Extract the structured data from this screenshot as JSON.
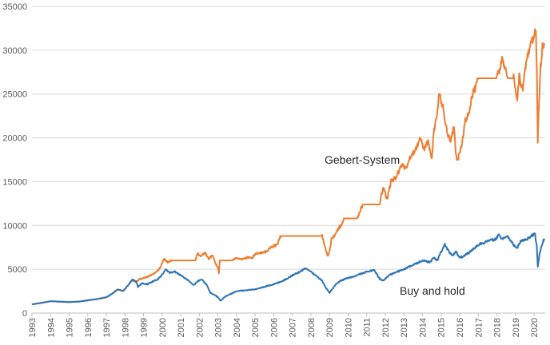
{
  "chart_data": {
    "type": "line",
    "title": "",
    "xlabel": "",
    "ylabel": "",
    "ylim": [
      0,
      35000
    ],
    "yticks": [
      0,
      5000,
      10000,
      15000,
      20000,
      25000,
      30000,
      35000
    ],
    "xlim": [
      1993,
      2020.6
    ],
    "xticks": [
      "1993",
      "1994",
      "1995",
      "1996",
      "1997",
      "1998",
      "1999",
      "2000",
      "2001",
      "2002",
      "2003",
      "2004",
      "2005",
      "2006",
      "2007",
      "2008",
      "2009",
      "2010",
      "2011",
      "2012",
      "2013",
      "2014",
      "2015",
      "2016",
      "2017",
      "2018",
      "2019",
      "2020"
    ],
    "grid": "horizontal",
    "legend": "none",
    "annotations": [
      {
        "text": "Gebert-System",
        "series": "orange"
      },
      {
        "text": "Buy and hold",
        "series": "blue"
      }
    ],
    "series": [
      {
        "color": "#ED7D31",
        "points": [
          [
            1993.0,
            1000
          ],
          [
            1993.5,
            1150
          ],
          [
            1994.0,
            1350
          ],
          [
            1994.5,
            1300
          ],
          [
            1995.0,
            1250
          ],
          [
            1995.5,
            1300
          ],
          [
            1996.0,
            1450
          ],
          [
            1996.5,
            1600
          ],
          [
            1997.0,
            1800
          ],
          [
            1997.3,
            2200
          ],
          [
            1997.6,
            2700
          ],
          [
            1997.9,
            2500
          ],
          [
            1998.1,
            3000
          ],
          [
            1998.4,
            3800
          ],
          [
            1998.6,
            3500
          ],
          [
            1998.8,
            3900
          ],
          [
            1999.0,
            4000
          ],
          [
            1999.4,
            4300
          ],
          [
            1999.7,
            4700
          ],
          [
            1999.9,
            5200
          ],
          [
            2000.1,
            6200
          ],
          [
            2000.3,
            5800
          ],
          [
            2000.5,
            6000
          ],
          [
            2001.0,
            6000
          ],
          [
            2001.5,
            6000
          ],
          [
            2001.8,
            6000
          ],
          [
            2001.9,
            6800
          ],
          [
            2002.1,
            6500
          ],
          [
            2002.3,
            6900
          ],
          [
            2002.5,
            6200
          ],
          [
            2002.7,
            6600
          ],
          [
            2002.9,
            5500
          ],
          [
            2003.0,
            5200
          ],
          [
            2003.05,
            4500
          ],
          [
            2003.1,
            6000
          ],
          [
            2003.5,
            6000
          ],
          [
            2003.8,
            6000
          ],
          [
            2004.0,
            6300
          ],
          [
            2004.3,
            6100
          ],
          [
            2004.6,
            6400
          ],
          [
            2004.8,
            6200
          ],
          [
            2005.0,
            6700
          ],
          [
            2005.3,
            6900
          ],
          [
            2005.6,
            7000
          ],
          [
            2005.9,
            7600
          ],
          [
            2006.2,
            7800
          ],
          [
            2006.3,
            8500
          ],
          [
            2006.4,
            8800
          ],
          [
            2007.0,
            8800
          ],
          [
            2007.5,
            8800
          ],
          [
            2008.0,
            8800
          ],
          [
            2008.6,
            8800
          ],
          [
            2008.7,
            8000
          ],
          [
            2008.8,
            7300
          ],
          [
            2008.9,
            6500
          ],
          [
            2009.0,
            7000
          ],
          [
            2009.1,
            8400
          ],
          [
            2009.3,
            8900
          ],
          [
            2009.5,
            9700
          ],
          [
            2009.7,
            10200
          ],
          [
            2009.8,
            10800
          ],
          [
            2010.2,
            10800
          ],
          [
            2010.5,
            10800
          ],
          [
            2010.6,
            11500
          ],
          [
            2010.8,
            12400
          ],
          [
            2011.2,
            12400
          ],
          [
            2011.7,
            12400
          ],
          [
            2011.8,
            13500
          ],
          [
            2011.9,
            14200
          ],
          [
            2012.1,
            13000
          ],
          [
            2012.3,
            15000
          ],
          [
            2012.6,
            15500
          ],
          [
            2012.9,
            17000
          ],
          [
            2013.1,
            16500
          ],
          [
            2013.4,
            18000
          ],
          [
            2013.7,
            19000
          ],
          [
            2013.9,
            20000
          ],
          [
            2014.1,
            18500
          ],
          [
            2014.3,
            19800
          ],
          [
            2014.5,
            17500
          ],
          [
            2014.6,
            20500
          ],
          [
            2014.8,
            23000
          ],
          [
            2014.9,
            25000
          ],
          [
            2015.1,
            23500
          ],
          [
            2015.3,
            21000
          ],
          [
            2015.5,
            19500
          ],
          [
            2015.7,
            21500
          ],
          [
            2015.8,
            18000
          ],
          [
            2015.9,
            17500
          ],
          [
            2016.1,
            19000
          ],
          [
            2016.3,
            22000
          ],
          [
            2016.5,
            23000
          ],
          [
            2016.7,
            25000
          ],
          [
            2016.9,
            26000
          ],
          [
            2017.0,
            26800
          ],
          [
            2017.5,
            26800
          ],
          [
            2018.0,
            26800
          ],
          [
            2018.1,
            27500
          ],
          [
            2018.3,
            29000
          ],
          [
            2018.4,
            28000
          ],
          [
            2018.6,
            26800
          ],
          [
            2018.9,
            26800
          ],
          [
            2019.1,
            24500
          ],
          [
            2019.2,
            27000
          ],
          [
            2019.4,
            25500
          ],
          [
            2019.6,
            29000
          ],
          [
            2019.8,
            30500
          ],
          [
            2020.0,
            31500
          ],
          [
            2020.1,
            32300
          ],
          [
            2020.15,
            28000
          ],
          [
            2020.2,
            19700
          ],
          [
            2020.25,
            23000
          ],
          [
            2020.35,
            28000
          ],
          [
            2020.45,
            30500
          ],
          [
            2020.55,
            30800
          ]
        ]
      },
      {
        "color": "#2E75B6",
        "points": [
          [
            1993.0,
            1000
          ],
          [
            1993.5,
            1150
          ],
          [
            1994.0,
            1350
          ],
          [
            1994.5,
            1300
          ],
          [
            1995.0,
            1250
          ],
          [
            1995.5,
            1300
          ],
          [
            1996.0,
            1450
          ],
          [
            1996.5,
            1600
          ],
          [
            1997.0,
            1800
          ],
          [
            1997.3,
            2200
          ],
          [
            1997.6,
            2700
          ],
          [
            1997.9,
            2500
          ],
          [
            1998.1,
            3000
          ],
          [
            1998.4,
            3800
          ],
          [
            1998.6,
            3600
          ],
          [
            1998.7,
            3000
          ],
          [
            1998.9,
            3400
          ],
          [
            1999.2,
            3300
          ],
          [
            1999.5,
            3600
          ],
          [
            1999.8,
            3900
          ],
          [
            2000.0,
            4400
          ],
          [
            2000.2,
            5000
          ],
          [
            2000.4,
            4600
          ],
          [
            2000.7,
            4700
          ],
          [
            2001.0,
            4300
          ],
          [
            2001.3,
            3900
          ],
          [
            2001.7,
            3200
          ],
          [
            2001.9,
            3600
          ],
          [
            2002.1,
            3900
          ],
          [
            2002.4,
            3200
          ],
          [
            2002.6,
            2300
          ],
          [
            2002.8,
            2100
          ],
          [
            2003.0,
            1800
          ],
          [
            2003.15,
            1400
          ],
          [
            2003.4,
            1900
          ],
          [
            2003.7,
            2200
          ],
          [
            2004.0,
            2500
          ],
          [
            2004.5,
            2600
          ],
          [
            2005.0,
            2700
          ],
          [
            2005.5,
            3000
          ],
          [
            2006.0,
            3300
          ],
          [
            2006.4,
            3600
          ],
          [
            2006.7,
            3900
          ],
          [
            2007.0,
            4300
          ],
          [
            2007.4,
            4700
          ],
          [
            2007.7,
            5100
          ],
          [
            2008.0,
            4700
          ],
          [
            2008.3,
            4200
          ],
          [
            2008.6,
            3700
          ],
          [
            2008.8,
            2900
          ],
          [
            2009.0,
            2300
          ],
          [
            2009.3,
            3200
          ],
          [
            2009.6,
            3700
          ],
          [
            2010.0,
            4000
          ],
          [
            2010.4,
            4200
          ],
          [
            2010.7,
            4500
          ],
          [
            2011.0,
            4700
          ],
          [
            2011.4,
            4900
          ],
          [
            2011.7,
            3900
          ],
          [
            2011.9,
            3700
          ],
          [
            2012.2,
            4300
          ],
          [
            2012.5,
            4600
          ],
          [
            2012.9,
            4900
          ],
          [
            2013.3,
            5300
          ],
          [
            2013.7,
            5700
          ],
          [
            2014.0,
            6000
          ],
          [
            2014.4,
            5800
          ],
          [
            2014.6,
            6300
          ],
          [
            2014.8,
            6000
          ],
          [
            2015.0,
            7000
          ],
          [
            2015.2,
            7800
          ],
          [
            2015.4,
            7100
          ],
          [
            2015.6,
            6500
          ],
          [
            2015.8,
            7000
          ],
          [
            2016.0,
            6300
          ],
          [
            2016.2,
            6500
          ],
          [
            2016.5,
            6900
          ],
          [
            2016.8,
            7400
          ],
          [
            2017.1,
            7900
          ],
          [
            2017.5,
            8200
          ],
          [
            2017.9,
            8400
          ],
          [
            2018.1,
            8900
          ],
          [
            2018.3,
            8500
          ],
          [
            2018.6,
            8700
          ],
          [
            2018.9,
            7800
          ],
          [
            2019.1,
            7500
          ],
          [
            2019.3,
            8300
          ],
          [
            2019.6,
            8400
          ],
          [
            2019.9,
            8900
          ],
          [
            2020.05,
            9000
          ],
          [
            2020.15,
            7500
          ],
          [
            2020.2,
            5300
          ],
          [
            2020.3,
            6800
          ],
          [
            2020.45,
            8000
          ],
          [
            2020.55,
            8500
          ]
        ]
      }
    ]
  }
}
